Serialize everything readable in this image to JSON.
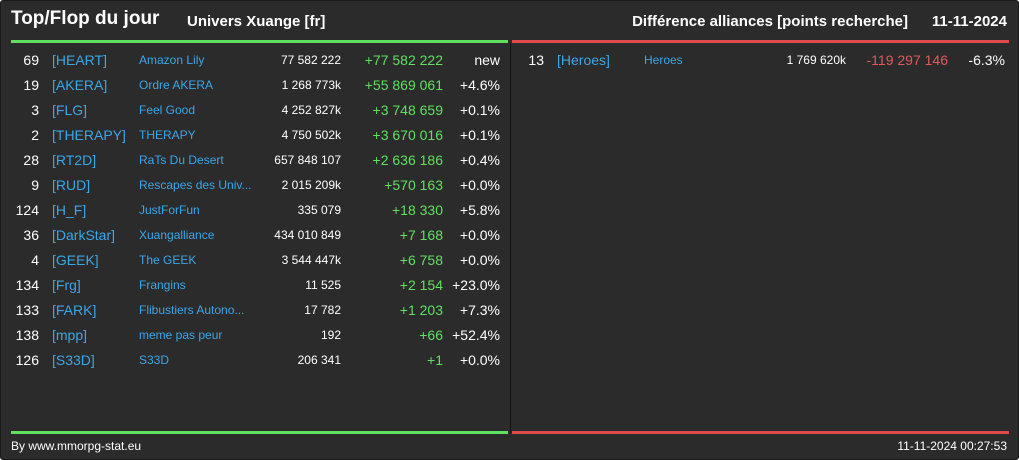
{
  "header": {
    "title": "Top/Flop du jour",
    "universe": "Univers Xuange [fr]",
    "category": "Différence alliances [points recherche]",
    "date": "11-11-2024"
  },
  "colors": {
    "positive": "#5fe05f",
    "negative": "#e04a4a",
    "link": "#3aa7e8",
    "background": "#2b2b2b"
  },
  "top": [
    {
      "rank": "69",
      "tag": "[HEART]",
      "name": "Amazon Lily",
      "points": "77 582 222",
      "diff": "+77 582 222",
      "pct": "new"
    },
    {
      "rank": "19",
      "tag": "[AKERA]",
      "name": "Ordre AKERA",
      "points": "1 268 773k",
      "diff": "+55 869 061",
      "pct": "+4.6%"
    },
    {
      "rank": "3",
      "tag": "[FLG]",
      "name": "Feel Good",
      "points": "4 252 827k",
      "diff": "+3 748 659",
      "pct": "+0.1%"
    },
    {
      "rank": "2",
      "tag": "[THERAPY]",
      "name": "THERAPY",
      "points": "4 750 502k",
      "diff": "+3 670 016",
      "pct": "+0.1%"
    },
    {
      "rank": "28",
      "tag": "[RT2D]",
      "name": "RaTs Du Desert",
      "points": "657 848 107",
      "diff": "+2 636 186",
      "pct": "+0.4%"
    },
    {
      "rank": "9",
      "tag": "[RUD]",
      "name": "Rescapes des Univ...",
      "points": "2 015 209k",
      "diff": "+570 163",
      "pct": "+0.0%"
    },
    {
      "rank": "124",
      "tag": "[H_F]",
      "name": "JustForFun",
      "points": "335 079",
      "diff": "+18 330",
      "pct": "+5.8%"
    },
    {
      "rank": "36",
      "tag": "[DarkStar]",
      "name": "Xuangalliance",
      "points": "434 010 849",
      "diff": "+7 168",
      "pct": "+0.0%"
    },
    {
      "rank": "4",
      "tag": "[GEEK]",
      "name": "The GEEK",
      "points": "3 544 447k",
      "diff": "+6 758",
      "pct": "+0.0%"
    },
    {
      "rank": "134",
      "tag": "[Frg]",
      "name": "Frangins",
      "points": "11 525",
      "diff": "+2 154",
      "pct": "+23.0%"
    },
    {
      "rank": "133",
      "tag": "[FARK]",
      "name": "Flibustiers Autono...",
      "points": "17 782",
      "diff": "+1 203",
      "pct": "+7.3%"
    },
    {
      "rank": "138",
      "tag": "[mpp]",
      "name": "meme pas peur",
      "points": "192",
      "diff": "+66",
      "pct": "+52.4%"
    },
    {
      "rank": "126",
      "tag": "[S33D]",
      "name": "S33D",
      "points": "206 341",
      "diff": "+1",
      "pct": "+0.0%"
    }
  ],
  "flop": [
    {
      "rank": "13",
      "tag": "[Heroes]",
      "name": "Heroes",
      "points": "1 769 620k",
      "diff": "-119 297 146",
      "pct": "-6.3%"
    }
  ],
  "footer": {
    "credit": "By www.mmorpg-stat.eu",
    "timestamp": "11-11-2024 00:27:53"
  }
}
